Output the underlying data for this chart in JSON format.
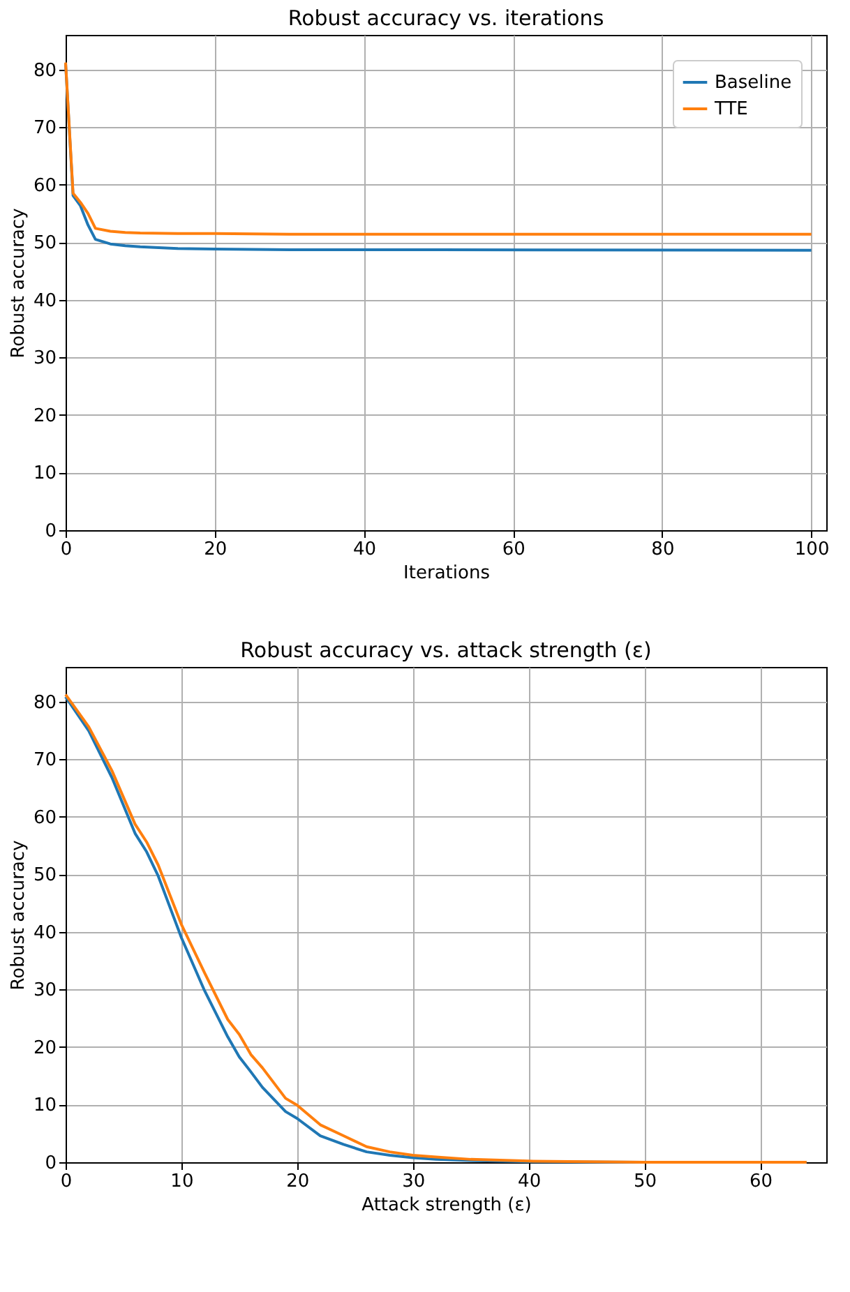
{
  "chart_data": [
    {
      "type": "line",
      "title": "Robust accuracy vs. iterations",
      "xlabel": "Iterations",
      "ylabel": "Robust accuracy",
      "xlim": [
        0,
        102
      ],
      "xticks": [
        0,
        20,
        40,
        60,
        80,
        100
      ],
      "ylim": [
        0,
        86
      ],
      "yticks": [
        0,
        10,
        20,
        30,
        40,
        50,
        60,
        70,
        80
      ],
      "grid": true,
      "legend": "top right",
      "line_style": "solid",
      "marker": "none",
      "series": [
        {
          "name": "Baseline",
          "color": "#1f77b4",
          "x": [
            0,
            1,
            2,
            3,
            4,
            6,
            8,
            10,
            15,
            20,
            30,
            50,
            100
          ],
          "values": [
            81,
            58.1,
            56.3,
            53,
            50.5,
            49.7,
            49.4,
            49.2,
            48.9,
            48.8,
            48.7,
            48.7,
            48.6
          ]
        },
        {
          "name": "TTE",
          "color": "#ff7f0e",
          "x": [
            0,
            1,
            2,
            3,
            4,
            6,
            8,
            10,
            15,
            20,
            30,
            50,
            100
          ],
          "values": [
            81.2,
            58.5,
            56.9,
            55,
            52.4,
            51.9,
            51.7,
            51.6,
            51.5,
            51.5,
            51.4,
            51.4,
            51.4
          ]
        }
      ]
    },
    {
      "type": "line",
      "title": "Robust accuracy vs. attack strength (ε)",
      "xlabel": "Attack strength (ε)",
      "ylabel": "Robust accuracy",
      "xlim": [
        0,
        65.7
      ],
      "xticks": [
        0,
        10,
        20,
        30,
        40,
        50,
        60
      ],
      "ylim": [
        0,
        86
      ],
      "yticks": [
        0,
        10,
        20,
        30,
        40,
        50,
        60,
        70,
        80
      ],
      "grid": true,
      "legend": "top right",
      "line_style": "solid",
      "marker": "none",
      "series": [
        {
          "name": "Baseline",
          "color": "#1f77b4",
          "x": [
            0,
            2,
            4,
            6,
            7,
            8,
            10,
            12,
            14,
            15,
            16,
            17,
            19,
            20,
            22,
            24,
            26,
            28,
            30,
            32,
            35,
            40,
            50,
            64
          ],
          "values": [
            80.8,
            74.9,
            66.8,
            57.1,
            53.9,
            49.7,
            39,
            29.8,
            21.8,
            18.3,
            15.7,
            13,
            8.8,
            7.6,
            4.6,
            3.1,
            1.8,
            1.2,
            0.8,
            0.5,
            0.3,
            0.1,
            0,
            0
          ]
        },
        {
          "name": "TTE",
          "color": "#ff7f0e",
          "x": [
            0,
            2,
            4,
            6,
            7,
            8,
            10,
            12,
            14,
            15,
            16,
            17,
            19,
            20,
            22,
            24,
            26,
            28,
            30,
            32,
            35,
            40,
            50,
            64
          ],
          "values": [
            81.2,
            75.6,
            68,
            58.7,
            55.6,
            51.6,
            41.3,
            32.9,
            24.8,
            22.2,
            18.7,
            16.4,
            11.1,
            9.9,
            6.5,
            4.6,
            2.7,
            1.8,
            1.2,
            0.9,
            0.5,
            0.2,
            0,
            0
          ]
        }
      ]
    }
  ]
}
